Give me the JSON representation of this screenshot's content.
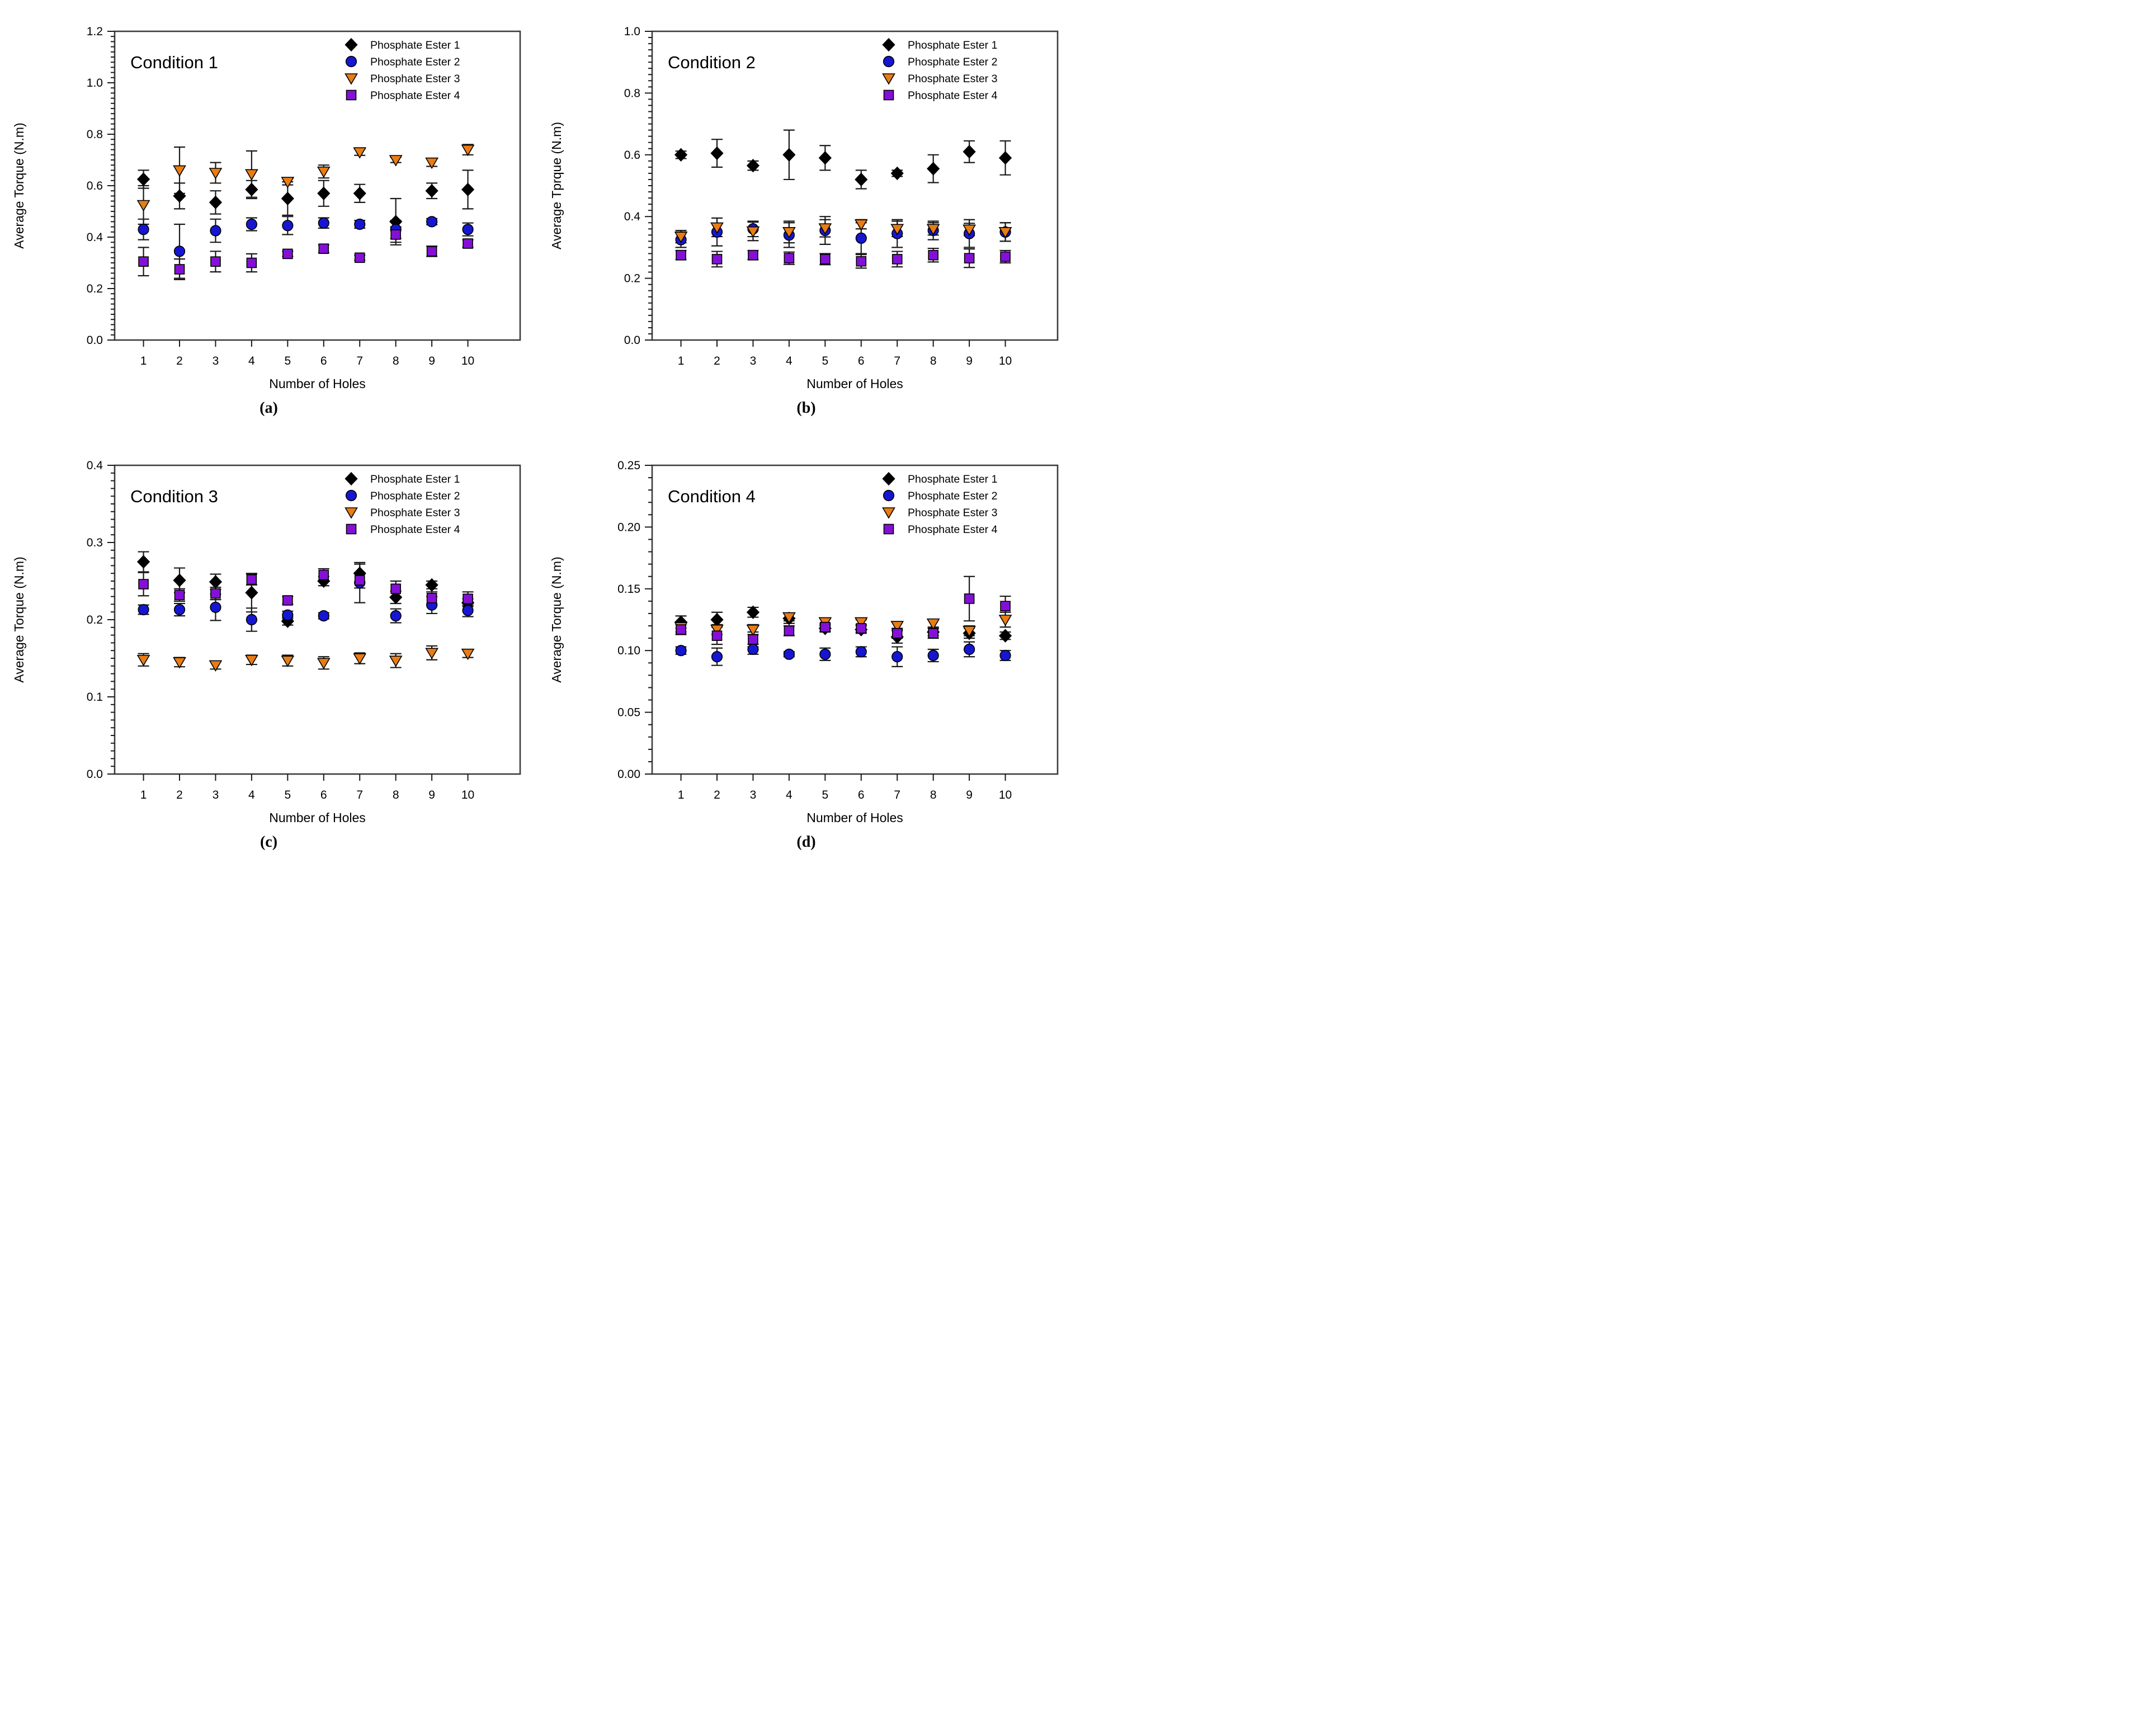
{
  "figure": {
    "panel_labels": [
      "(a)",
      "(b)",
      "(c)",
      "(d)"
    ],
    "series_colors": {
      "phosphate_ester_1": "#000000",
      "phosphate_ester_2": "#1616D2",
      "phosphate_ester_3": "#E87C15",
      "phosphate_ester_4": "#8410D6"
    }
  },
  "chart_data": [
    {
      "type": "scatter",
      "panel_label": "(a)",
      "title": "Condition 1",
      "xlabel": "Number of Holes",
      "ylabel": "Average Torque (N.m)",
      "xlim": [
        0.2,
        11.45
      ],
      "ylim": [
        0.0,
        1.2
      ],
      "ytick_major": 0.2,
      "ytick_minor": 0.02,
      "ytick_decimals": 1,
      "grid": false,
      "legend_position": "top-right-inside",
      "x": [
        1,
        2,
        3,
        4,
        5,
        6,
        7,
        8,
        9,
        10
      ],
      "series": [
        {
          "name": "Phosphate Ester 1",
          "marker": "diamond",
          "color": "#000000",
          "y": [
            0.625,
            0.56,
            0.535,
            0.585,
            0.55,
            0.57,
            0.57,
            0.46,
            0.58,
            0.585
          ],
          "err": [
            0.035,
            0.05,
            0.045,
            0.035,
            0.065,
            0.05,
            0.035,
            0.09,
            0.03,
            0.075
          ]
        },
        {
          "name": "Phosphate Ester 2",
          "marker": "circle",
          "color": "#1616D2",
          "y": [
            0.43,
            0.345,
            0.425,
            0.45,
            0.445,
            0.455,
            0.45,
            0.43,
            0.46,
            0.43
          ],
          "err": [
            0.04,
            0.105,
            0.045,
            0.025,
            0.035,
            0.02,
            0.015,
            0.035,
            0.012,
            0.025
          ]
        },
        {
          "name": "Phosphate Ester 3",
          "marker": "triangle-down",
          "color": "#E87C15",
          "y": [
            0.525,
            0.66,
            0.65,
            0.645,
            0.615,
            0.655,
            0.73,
            0.7,
            0.69,
            0.74
          ],
          "err": [
            0.075,
            0.09,
            0.04,
            0.09,
            0.012,
            0.025,
            0.012,
            0.01,
            0.015,
            0.02
          ]
        },
        {
          "name": "Phosphate Ester 4",
          "marker": "square",
          "color": "#8410D6",
          "y": [
            0.305,
            0.275,
            0.305,
            0.3,
            0.335,
            0.355,
            0.32,
            0.41,
            0.345,
            0.375
          ],
          "err": [
            0.055,
            0.04,
            0.04,
            0.035,
            0.01,
            0.015,
            0.01,
            0.03,
            0.02,
            0.015
          ]
        }
      ]
    },
    {
      "type": "scatter",
      "panel_label": "(b)",
      "title": "Condition 2",
      "xlabel": "Number of Holes",
      "ylabel": "Average Tprque (N.m)",
      "xlim": [
        0.2,
        11.45
      ],
      "ylim": [
        0.0,
        1.0
      ],
      "ytick_major": 0.2,
      "ytick_minor": 0.02,
      "ytick_decimals": 1,
      "grid": false,
      "legend_position": "top-right-inside",
      "x": [
        1,
        2,
        3,
        4,
        5,
        6,
        7,
        8,
        9,
        10
      ],
      "series": [
        {
          "name": "Phosphate Ester 1",
          "marker": "diamond",
          "color": "#000000",
          "y": [
            0.6,
            0.605,
            0.565,
            0.6,
            0.59,
            0.52,
            0.54,
            0.555,
            0.61,
            0.59
          ],
          "err": [
            0.012,
            0.045,
            0.015,
            0.08,
            0.04,
            0.03,
            0.01,
            0.045,
            0.035,
            0.055
          ]
        },
        {
          "name": "Phosphate Ester 2",
          "marker": "circle",
          "color": "#1616D2",
          "y": [
            0.325,
            0.35,
            0.36,
            0.34,
            0.355,
            0.33,
            0.345,
            0.355,
            0.345,
            0.35
          ],
          "err": [
            0.025,
            0.045,
            0.025,
            0.04,
            0.045,
            0.05,
            0.045,
            0.03,
            0.045,
            0.03
          ]
        },
        {
          "name": "Phosphate Ester 3",
          "marker": "triangle-down",
          "color": "#E87C15",
          "y": [
            0.335,
            0.365,
            0.352,
            0.35,
            0.362,
            0.375,
            0.36,
            0.36,
            0.358,
            0.35
          ],
          "err": [
            0.02,
            0.03,
            0.03,
            0.035,
            0.028,
            0.015,
            0.025,
            0.02,
            0.02,
            0.03
          ]
        },
        {
          "name": "Phosphate Ester 4",
          "marker": "square",
          "color": "#8410D6",
          "y": [
            0.275,
            0.262,
            0.275,
            0.265,
            0.262,
            0.255,
            0.262,
            0.275,
            0.265,
            0.27
          ],
          "err": [
            0.015,
            0.025,
            0.015,
            0.02,
            0.018,
            0.022,
            0.025,
            0.022,
            0.03,
            0.02
          ]
        }
      ]
    },
    {
      "type": "scatter",
      "panel_label": "(c)",
      "title": "Condition 3",
      "xlabel": "Number of Holes",
      "ylabel": "Average Torque (N.m)",
      "xlim": [
        0.2,
        11.45
      ],
      "ylim": [
        0.0,
        0.4
      ],
      "ytick_major": 0.1,
      "ytick_minor": 0.01,
      "ytick_decimals": 1,
      "grid": false,
      "legend_position": "top-right-inside",
      "x": [
        1,
        2,
        3,
        4,
        5,
        6,
        7,
        8,
        9,
        10
      ],
      "series": [
        {
          "name": "Phosphate Ester 1",
          "marker": "diamond",
          "color": "#000000",
          "y": [
            0.275,
            0.251,
            0.249,
            0.235,
            0.198,
            0.25,
            0.26,
            0.229,
            0.245,
            0.222
          ],
          "err": [
            0.013,
            0.016,
            0.01,
            0.025,
            0.005,
            0.006,
            0.012,
            0.008,
            0.005,
            0.005
          ]
        },
        {
          "name": "Phosphate Ester 2",
          "marker": "circle",
          "color": "#1616D2",
          "y": [
            0.213,
            0.213,
            0.216,
            0.2,
            0.206,
            0.205,
            0.248,
            0.205,
            0.219,
            0.212
          ],
          "err": [
            0.006,
            0.008,
            0.017,
            0.015,
            0.005,
            0.004,
            0.026,
            0.009,
            0.011,
            0.008
          ]
        },
        {
          "name": "Phosphate Ester 3",
          "marker": "triangle-down",
          "color": "#E87C15",
          "y": [
            0.148,
            0.145,
            0.141,
            0.148,
            0.147,
            0.144,
            0.15,
            0.147,
            0.157,
            0.156
          ],
          "err": [
            0.008,
            0.006,
            0.005,
            0.006,
            0.007,
            0.008,
            0.007,
            0.009,
            0.009,
            0.005
          ]
        },
        {
          "name": "Phosphate Ester 4",
          "marker": "square",
          "color": "#8410D6",
          "y": [
            0.246,
            0.232,
            0.234,
            0.252,
            0.225,
            0.258,
            0.251,
            0.24,
            0.228,
            0.227
          ],
          "err": [
            0.015,
            0.008,
            0.008,
            0.007,
            0.005,
            0.008,
            0.01,
            0.01,
            0.008,
            0.009
          ]
        }
      ]
    },
    {
      "type": "scatter",
      "panel_label": "(d)",
      "title": "Condition 4",
      "xlabel": "Number of Holes",
      "ylabel": "Average Torque (N.m)",
      "xlim": [
        0.2,
        11.45
      ],
      "ylim": [
        0.0,
        0.25
      ],
      "ytick_major": 0.05,
      "ytick_minor": 0.01,
      "ytick_decimals": 2,
      "grid": false,
      "legend_position": "top-right-inside",
      "x": [
        1,
        2,
        3,
        4,
        5,
        6,
        7,
        8,
        9,
        10
      ],
      "series": [
        {
          "name": "Phosphate Ester 1",
          "marker": "diamond",
          "color": "#000000",
          "y": [
            0.123,
            0.125,
            0.131,
            0.126,
            0.118,
            0.117,
            0.111,
            0.115,
            0.114,
            0.112
          ],
          "err": [
            0.005,
            0.006,
            0.004,
            0.004,
            0.003,
            0.003,
            0.005,
            0.003,
            0.004,
            0.003
          ]
        },
        {
          "name": "Phosphate Ester 2",
          "marker": "circle",
          "color": "#1616D2",
          "y": [
            0.1,
            0.095,
            0.101,
            0.097,
            0.097,
            0.099,
            0.095,
            0.096,
            0.101,
            0.096
          ],
          "err": [
            0.003,
            0.007,
            0.004,
            0.002,
            0.005,
            0.004,
            0.008,
            0.005,
            0.006,
            0.004
          ]
        },
        {
          "name": "Phosphate Ester 3",
          "marker": "triangle-down",
          "color": "#E87C15",
          "y": [
            0.119,
            0.117,
            0.117,
            0.127,
            0.123,
            0.123,
            0.12,
            0.122,
            0.116,
            0.125
          ],
          "err": [
            0.004,
            0.004,
            0.004,
            0.003,
            0.003,
            0.002,
            0.003,
            0.003,
            0.004,
            0.006
          ]
        },
        {
          "name": "Phosphate Ester 4",
          "marker": "square",
          "color": "#8410D6",
          "y": [
            0.117,
            0.112,
            0.109,
            0.116,
            0.119,
            0.118,
            0.114,
            0.114,
            0.142,
            0.136
          ],
          "err": [
            0.004,
            0.007,
            0.006,
            0.004,
            0.003,
            0.003,
            0.004,
            0.004,
            0.018,
            0.008
          ]
        }
      ]
    }
  ]
}
